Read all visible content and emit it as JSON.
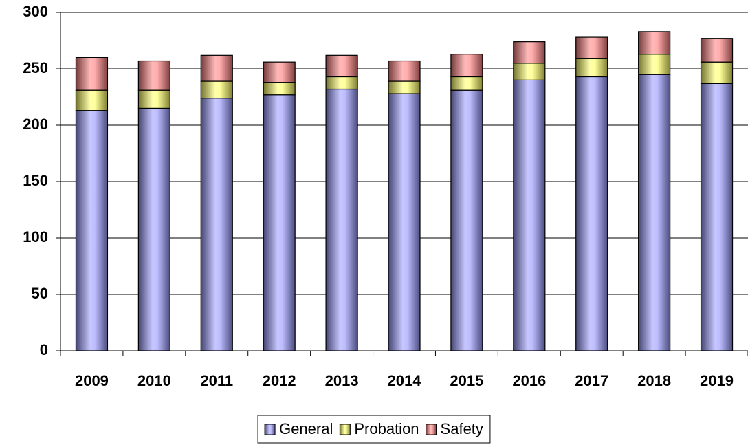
{
  "chart_data": {
    "type": "stacked-bar",
    "categories": [
      "2009",
      "2010",
      "2011",
      "2012",
      "2013",
      "2014",
      "2015",
      "2016",
      "2017",
      "2018",
      "2019"
    ],
    "series": [
      {
        "name": "General",
        "color": "#9999ff",
        "values": [
          213,
          215,
          224,
          227,
          232,
          228,
          231,
          240,
          243,
          245,
          237
        ]
      },
      {
        "name": "Probation",
        "color": "#ffff66",
        "values": [
          18,
          16,
          15,
          11,
          11,
          11,
          12,
          15,
          16,
          18,
          19
        ]
      },
      {
        "name": "Safety",
        "color": "#ff8080",
        "values": [
          29,
          26,
          23,
          18,
          19,
          18,
          20,
          19,
          19,
          20,
          21
        ]
      }
    ],
    "ylim": [
      0,
      300
    ],
    "yticks": [
      0,
      50,
      100,
      150,
      200,
      250,
      300
    ],
    "grid": true,
    "legend": "bottom"
  }
}
